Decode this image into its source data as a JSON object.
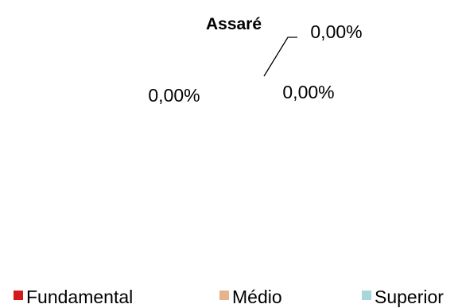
{
  "chart_data": {
    "type": "pie",
    "title": "Assaré",
    "categories": [
      "Fundamental",
      "Médio",
      "Superior"
    ],
    "values": [
      0,
      0,
      0
    ],
    "data_labels": [
      "0,00%",
      "0,00%",
      "0,00%"
    ],
    "colors": [
      "#d21a1a",
      "#e6b48c",
      "#a9d6da"
    ],
    "legend_position": "bottom"
  }
}
